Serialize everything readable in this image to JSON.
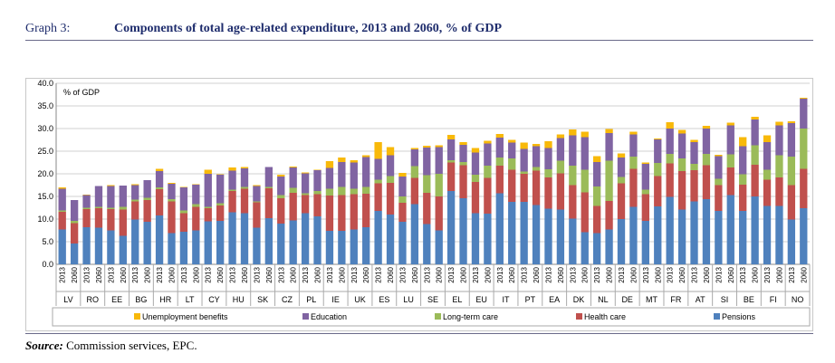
{
  "header": {
    "graph_number": "Graph 3:",
    "title": "Components of total age-related expenditure, 2013 and 2060, % of GDP"
  },
  "source": {
    "label": "Source:",
    "text": " Commission services, EPC."
  },
  "colors": {
    "pensions": "#4f81bd",
    "health_care": "#c0504d",
    "long_term_care": "#9bbb59",
    "education": "#8064a2",
    "unemployment_benefits": "#f8b90a"
  },
  "chart_data": {
    "type": "bar",
    "stacked": true,
    "title": "Components of total age-related expenditure, 2013 and 2060, % of GDP",
    "ylabel": "% of GDP",
    "xlabel": "",
    "ylim": [
      0,
      40
    ],
    "yticks": [
      "0.0",
      "5.0",
      "10.0",
      "15.0",
      "20.0",
      "25.0",
      "30.0",
      "35.0",
      "40.0"
    ],
    "grid": true,
    "legend_position": "bottom",
    "country_order": [
      "LV",
      "RO",
      "EE",
      "BG",
      "HR",
      "LT",
      "CY",
      "HU",
      "SK",
      "CZ",
      "PL",
      "IE",
      "UK",
      "ES",
      "LU",
      "SE",
      "EL",
      "EU",
      "IT",
      "PT",
      "EA",
      "DK",
      "NL",
      "DE",
      "MT",
      "FR",
      "AT",
      "SI",
      "BE",
      "FI",
      "NO"
    ],
    "categories": [
      "LV 2013",
      "LV 2060",
      "RO 2013",
      "RO 2060",
      "EE 2013",
      "EE 2060",
      "BG 2013",
      "BG 2060",
      "HR 2013",
      "HR 2060",
      "LT 2013",
      "LT 2060",
      "CY 2013",
      "CY 2060",
      "HU 2013",
      "HU 2060",
      "SK 2013",
      "SK 2060",
      "CZ 2013",
      "CZ 2060",
      "PL 2013",
      "PL 2060",
      "IE 2013",
      "IE 2060",
      "UK 2013",
      "UK 2060",
      "ES 2013",
      "ES 2060",
      "LU 2013",
      "LU 2060",
      "SE 2013",
      "SE 2060",
      "EL 2013",
      "EL 2060",
      "EU 2013",
      "EU 2060",
      "IT 2013",
      "IT 2060",
      "PT 2013",
      "PT 2060",
      "EA 2013",
      "EA 2060",
      "DK 2013",
      "DK 2060",
      "NL 2013",
      "NL 2060",
      "DE 2013",
      "DE 2060",
      "MT 2013",
      "MT 2060",
      "FR 2013",
      "FR 2060",
      "AT 2013",
      "AT 2060",
      "SI 2013",
      "SI 2060",
      "BE 2013",
      "BE 2060",
      "FI 2013",
      "FI 2060",
      "NO 2013",
      "NO 2060"
    ],
    "x_tick_labels": [
      "2013",
      "2060",
      "2013",
      "2060",
      "2013",
      "2060",
      "2013",
      "2060",
      "2013",
      "2060",
      "2013",
      "2060",
      "2013",
      "2060",
      "2013",
      "2060",
      "2013",
      "2060",
      "2013",
      "2060",
      "2013",
      "2060",
      "2013",
      "2060",
      "2013",
      "2060",
      "2013",
      "2060",
      "2013",
      "2060",
      "2013",
      "2060",
      "2013",
      "2060",
      "2013",
      "2060",
      "2013",
      "2060",
      "2013",
      "2060",
      "2013",
      "2060",
      "2013",
      "2060",
      "2013",
      "2060",
      "2013",
      "2060",
      "2013",
      "2060",
      "2013",
      "2060",
      "2013",
      "2060",
      "2013",
      "2060",
      "2013",
      "2060",
      "2013",
      "2060",
      "2013",
      "2060"
    ],
    "series": [
      {
        "name": "Pensions",
        "color": "#4f81bd",
        "values": [
          7.7,
          4.6,
          8.2,
          8.1,
          7.5,
          6.3,
          9.9,
          9.4,
          10.8,
          6.9,
          7.2,
          7.5,
          9.5,
          9.6,
          11.5,
          11.3,
          8.1,
          10.2,
          9.0,
          9.7,
          11.3,
          10.6,
          7.4,
          7.4,
          7.7,
          8.2,
          11.8,
          11.0,
          9.4,
          13.3,
          8.9,
          7.5,
          16.2,
          14.6,
          11.3,
          11.2,
          15.7,
          13.8,
          13.8,
          13.1,
          12.3,
          12.1,
          10.1,
          7.1,
          6.9,
          7.7,
          10.0,
          12.7,
          9.6,
          12.8,
          14.9,
          12.1,
          13.9,
          14.4,
          11.8,
          15.3,
          11.8,
          15.0,
          12.9,
          12.9,
          9.9,
          12.4
        ]
      },
      {
        "name": "Health care",
        "color": "#c0504d",
        "values": [
          3.9,
          4.5,
          4.0,
          4.3,
          4.7,
          5.8,
          4.0,
          4.8,
          5.8,
          7.0,
          4.1,
          5.2,
          2.9,
          3.4,
          4.7,
          5.4,
          5.6,
          6.6,
          5.6,
          6.1,
          4.0,
          4.9,
          7.8,
          7.9,
          7.8,
          7.4,
          6.1,
          7.0,
          4.2,
          5.8,
          6.9,
          7.5,
          6.3,
          7.3,
          6.9,
          7.9,
          6.1,
          7.1,
          6.2,
          7.6,
          6.9,
          8.0,
          7.4,
          8.8,
          6.0,
          6.3,
          7.9,
          8.4,
          5.9,
          6.7,
          7.4,
          8.5,
          6.9,
          7.5,
          5.7,
          6.1,
          5.8,
          7.0,
          5.8,
          6.3,
          7.6,
          8.7
        ]
      },
      {
        "name": "Long-term care",
        "color": "#9bbb59",
        "values": [
          0.3,
          0.5,
          0.3,
          0.3,
          0.3,
          0.6,
          0.4,
          0.5,
          0.4,
          0.5,
          0.6,
          0.6,
          0.3,
          0.5,
          0.3,
          0.4,
          0.2,
          0.3,
          0.7,
          1.1,
          0.4,
          0.7,
          1.5,
          1.8,
          1.2,
          1.5,
          0.8,
          1.5,
          1.4,
          2.6,
          3.9,
          5.0,
          0.5,
          0.7,
          1.6,
          2.7,
          1.8,
          2.5,
          0.5,
          0.8,
          1.8,
          2.8,
          4.3,
          5.0,
          4.3,
          8.9,
          1.4,
          2.7,
          1.0,
          2.9,
          2.1,
          2.8,
          1.4,
          2.5,
          1.4,
          2.9,
          2.3,
          4.3,
          2.2,
          4.9,
          6.3,
          8.9
        ]
      },
      {
        "name": "Education",
        "color": "#8064a2",
        "values": [
          4.8,
          4.6,
          2.8,
          4.6,
          4.8,
          4.7,
          3.2,
          3.9,
          3.6,
          3.4,
          5.1,
          4.3,
          7.3,
          6.3,
          4.2,
          4.1,
          3.4,
          4.4,
          4.1,
          4.5,
          4.4,
          4.6,
          4.6,
          5.5,
          5.8,
          6.6,
          4.6,
          4.6,
          4.4,
          3.7,
          6.1,
          5.9,
          4.6,
          3.8,
          4.9,
          4.9,
          4.4,
          3.5,
          5.0,
          4.6,
          4.7,
          5.0,
          6.7,
          7.2,
          5.4,
          6.1,
          4.3,
          4.9,
          5.7,
          5.2,
          5.6,
          5.5,
          4.8,
          5.6,
          5.0,
          6.4,
          6.2,
          5.7,
          6.1,
          6.6,
          7.4,
          6.6
        ]
      },
      {
        "name": "Unemployment benefits",
        "color": "#f8b90a",
        "values": [
          0.3,
          0.0,
          0.1,
          0.0,
          0.2,
          0.0,
          0.2,
          0.0,
          0.5,
          0.2,
          0.1,
          0.1,
          0.9,
          0.1,
          0.7,
          0.3,
          0.2,
          0.0,
          0.4,
          0.2,
          0.2,
          0.1,
          1.5,
          1.0,
          0.5,
          0.4,
          3.7,
          1.8,
          0.8,
          0.3,
          0.4,
          0.4,
          1.0,
          0.6,
          1.0,
          0.6,
          0.8,
          0.6,
          1.4,
          0.5,
          1.5,
          0.8,
          1.3,
          1.2,
          1.3,
          0.9,
          0.9,
          0.6,
          0.3,
          0.2,
          1.4,
          0.8,
          0.5,
          0.6,
          0.3,
          0.6,
          2.0,
          0.6,
          1.5,
          0.8,
          0.4,
          0.2
        ]
      }
    ],
    "legend": [
      "Unemployment benefits",
      "Education",
      "Long-term care",
      "Health care",
      "Pensions"
    ]
  }
}
